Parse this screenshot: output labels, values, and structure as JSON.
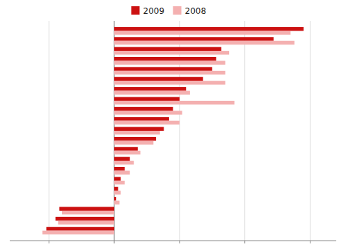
{
  "chart_data": {
    "type": "bar",
    "orientation": "horizontal",
    "categories": [
      null,
      null,
      null,
      null,
      null,
      null,
      null,
      null,
      null,
      null,
      null,
      null,
      null,
      null,
      null,
      null,
      null,
      null,
      null,
      null,
      null
    ],
    "series": [
      {
        "name": "2009",
        "color": "#cc1111",
        "values": [
          14.5,
          12.2,
          8.2,
          7.8,
          7.5,
          6.8,
          5.5,
          5.0,
          4.5,
          4.2,
          3.8,
          3.2,
          1.8,
          1.2,
          0.8,
          0.5,
          0.3,
          0.15,
          -4.2,
          -4.5,
          -5.2
        ]
      },
      {
        "name": "2008",
        "color": "#f4b0b0",
        "values": [
          13.5,
          13.8,
          8.8,
          8.5,
          8.5,
          8.5,
          5.8,
          9.2,
          5.2,
          5.0,
          3.5,
          3.0,
          2.0,
          1.5,
          1.2,
          0.8,
          0.5,
          0.4,
          -4.0,
          -4.3,
          -5.5
        ]
      }
    ],
    "xlim": [
      -8,
      17
    ],
    "xticks": [
      -5,
      0,
      5,
      10,
      15
    ],
    "grid": true,
    "tick_labels": false,
    "legend": "top"
  }
}
